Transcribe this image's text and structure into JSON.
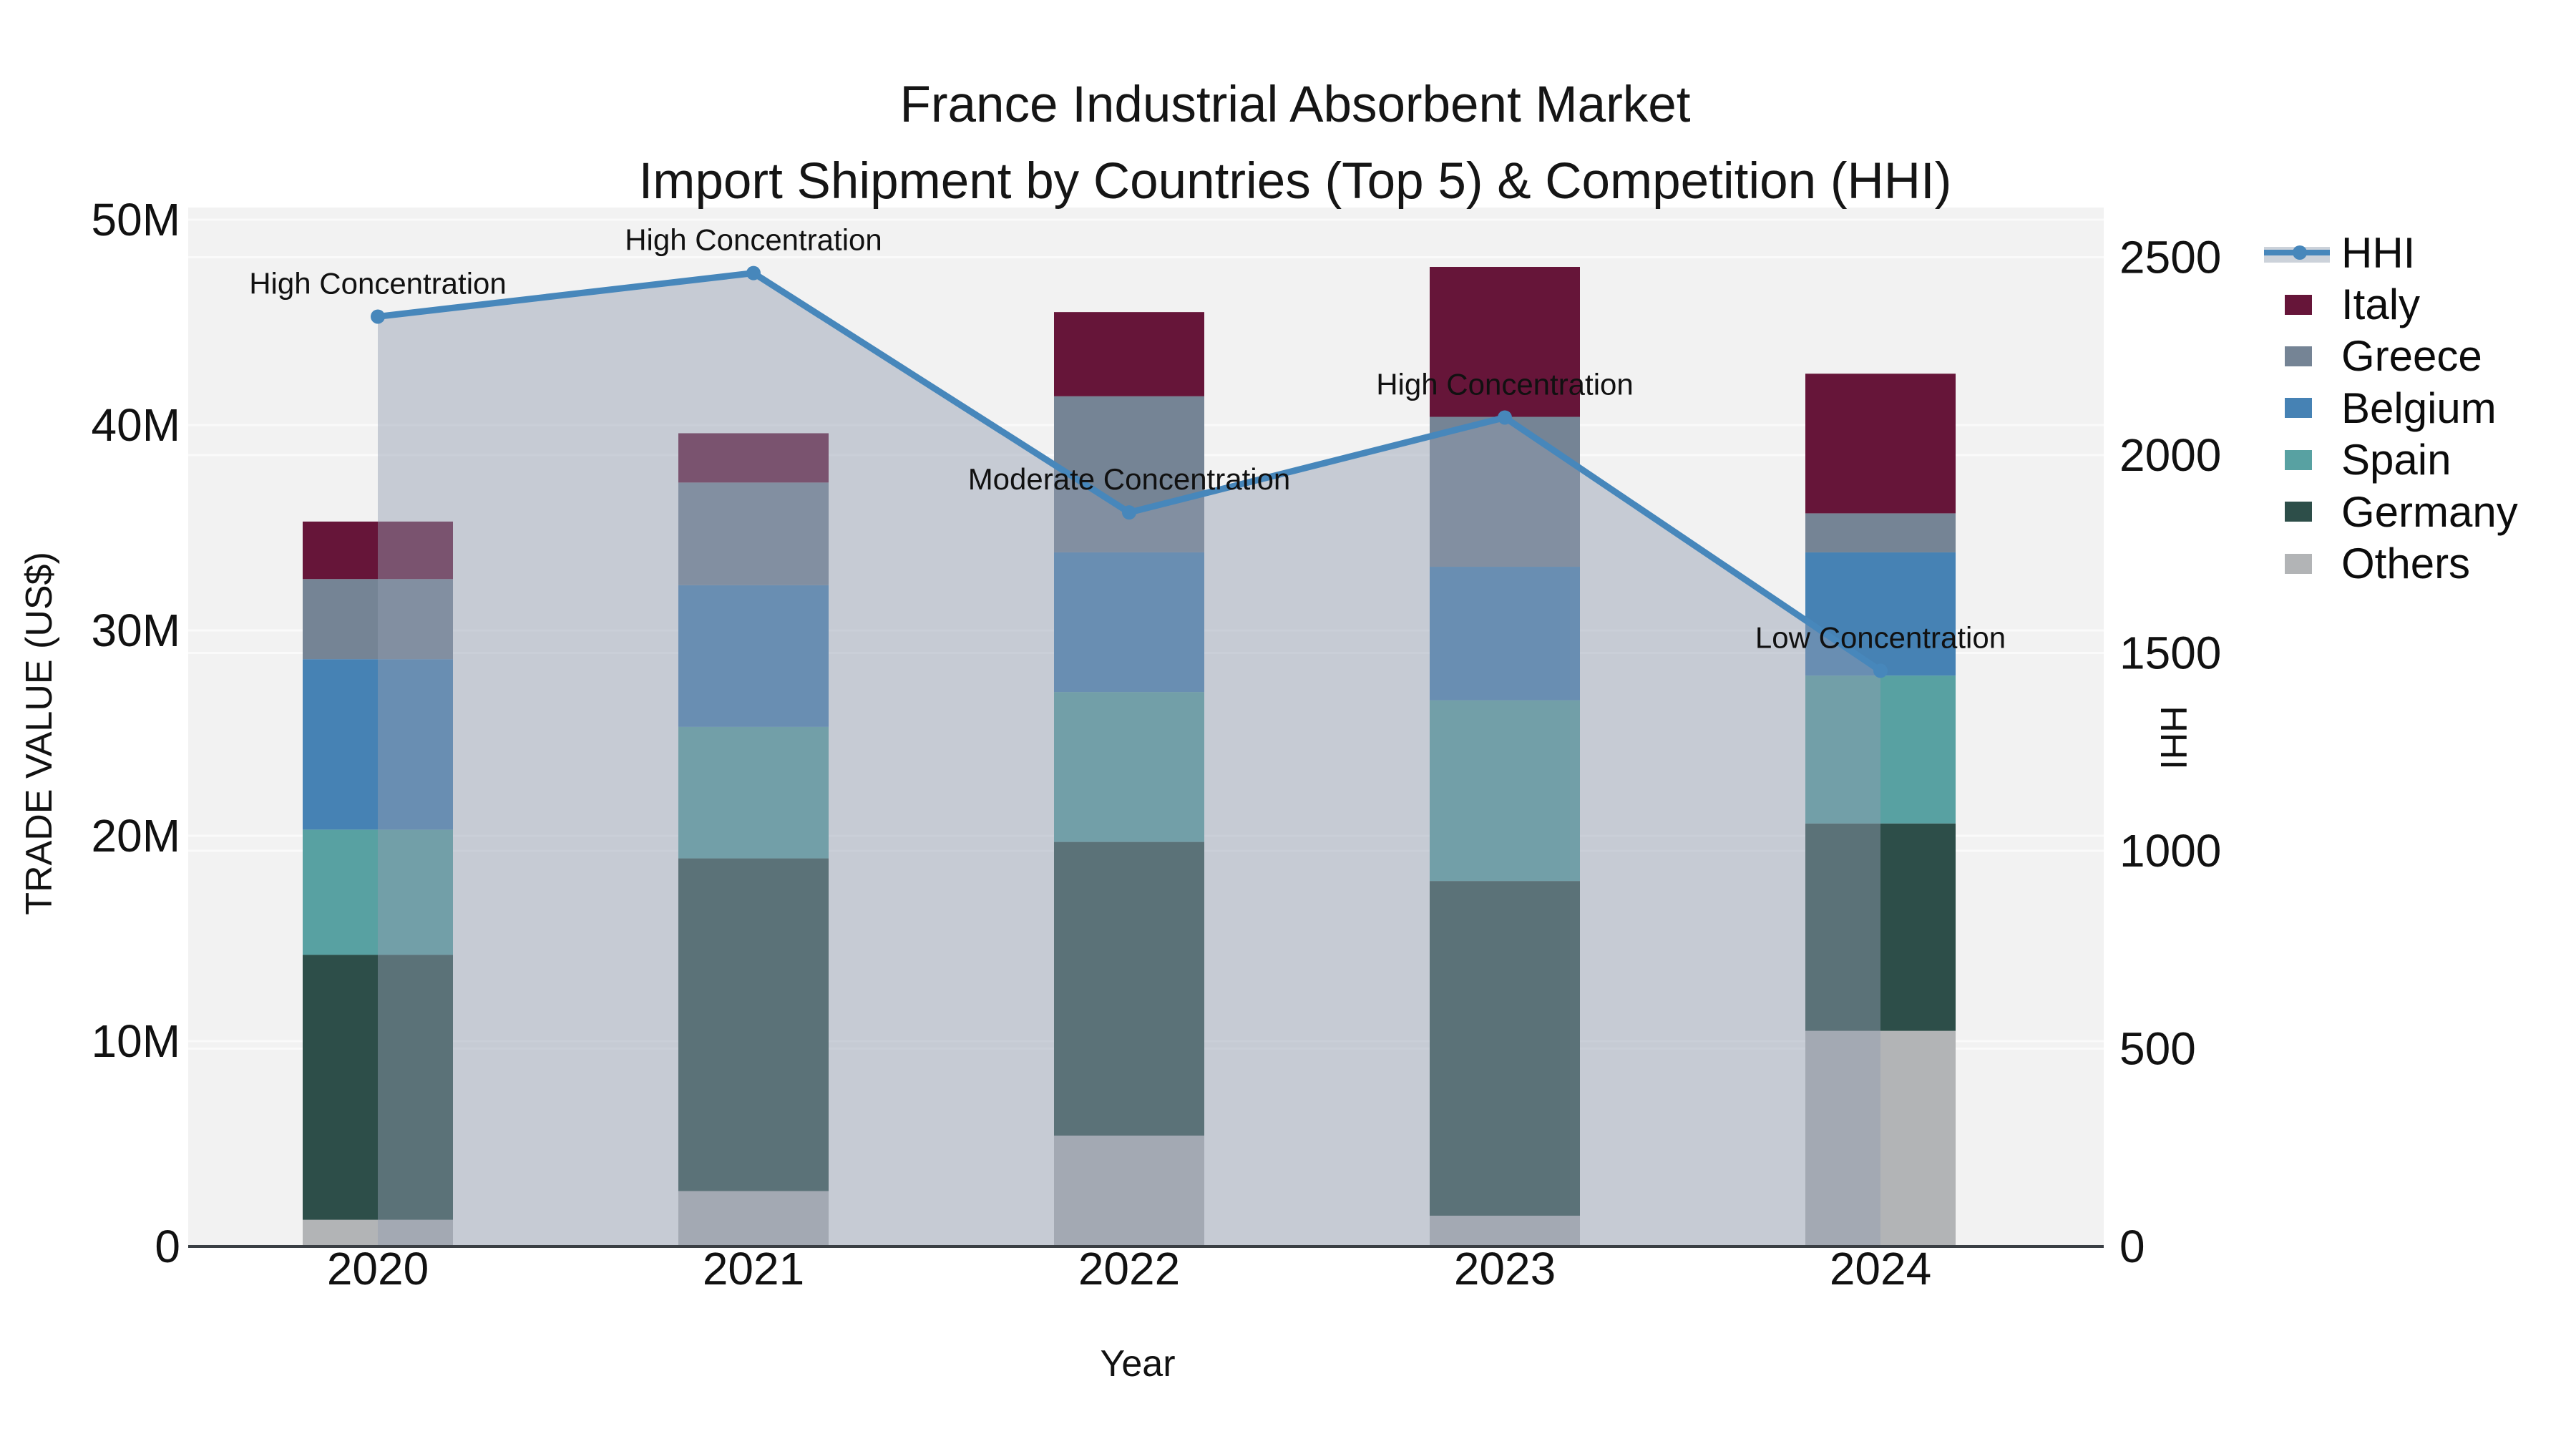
{
  "title": {
    "line1": "France Industrial Absorbent Market",
    "line2": "Import Shipment by Countries (Top 5) & Competition (HHI)"
  },
  "chart_data": {
    "type": "bar",
    "subtype": "stacked-bars-with-line-overlay",
    "title": "France Industrial Absorbent Market — Import Shipment by Countries (Top 5) & Competition (HHI)",
    "xlabel": "Year",
    "ylabel_left": "TRADE VALUE (US$)",
    "ylabel_right": "HHI",
    "categories": [
      "2020",
      "2021",
      "2022",
      "2023",
      "2024"
    ],
    "y_left": {
      "unit": "M US$",
      "max": 50,
      "values": [
        0,
        10,
        20,
        30,
        40,
        50
      ],
      "ticks": [
        "0",
        "10M",
        "20M",
        "30M",
        "40M",
        "50M"
      ]
    },
    "y_right": {
      "max": 2500,
      "values": [
        0,
        500,
        1000,
        1500,
        2000,
        2500
      ],
      "ticks": [
        "0",
        "500",
        "1000",
        "1500",
        "2000",
        "2500"
      ]
    },
    "series": [
      {
        "name": "Others",
        "color": "#b2b4b6",
        "values": [
          1.3,
          2.7,
          5.4,
          1.5,
          10.5
        ]
      },
      {
        "name": "Germany",
        "color": "#2d4e49",
        "values": [
          12.9,
          16.2,
          14.3,
          16.3,
          10.1
        ]
      },
      {
        "name": "Spain",
        "color": "#58a1a2",
        "values": [
          6.1,
          6.4,
          7.3,
          8.8,
          7.2
        ]
      },
      {
        "name": "Belgium",
        "color": "#4682b4",
        "values": [
          8.3,
          6.9,
          6.8,
          6.5,
          6.0
        ]
      },
      {
        "name": "Greece",
        "color": "#758495",
        "values": [
          3.9,
          5.0,
          7.6,
          7.3,
          1.9
        ]
      },
      {
        "name": "Italy",
        "color": "#661539",
        "values": [
          2.8,
          2.4,
          4.1,
          7.3,
          6.8
        ]
      }
    ],
    "totals": [
      35.3,
      39.6,
      45.5,
      47.7,
      42.5
    ],
    "hhi": {
      "name": "HHI",
      "color": "#4787bb",
      "area_color": "rgba(147,158,177,0.46)",
      "legend_band_color": "#ccd2da",
      "values": [
        2350,
        2460,
        1855,
        2095,
        1455
      ],
      "annotations": [
        "High Concentration",
        "High Concentration",
        "Moderate Concentration",
        "High Concentration",
        "Low Concentration"
      ]
    },
    "legend": [
      {
        "label": "HHI"
      },
      {
        "label": "Italy",
        "color": "#661539"
      },
      {
        "label": "Greece",
        "color": "#758495"
      },
      {
        "label": "Belgium",
        "color": "#4682b4"
      },
      {
        "label": "Spain",
        "color": "#58a1a2"
      },
      {
        "label": "Germany",
        "color": "#2d4e49"
      },
      {
        "label": "Others",
        "color": "#b2b4b6"
      }
    ],
    "grid": true,
    "legend_position": "right"
  }
}
